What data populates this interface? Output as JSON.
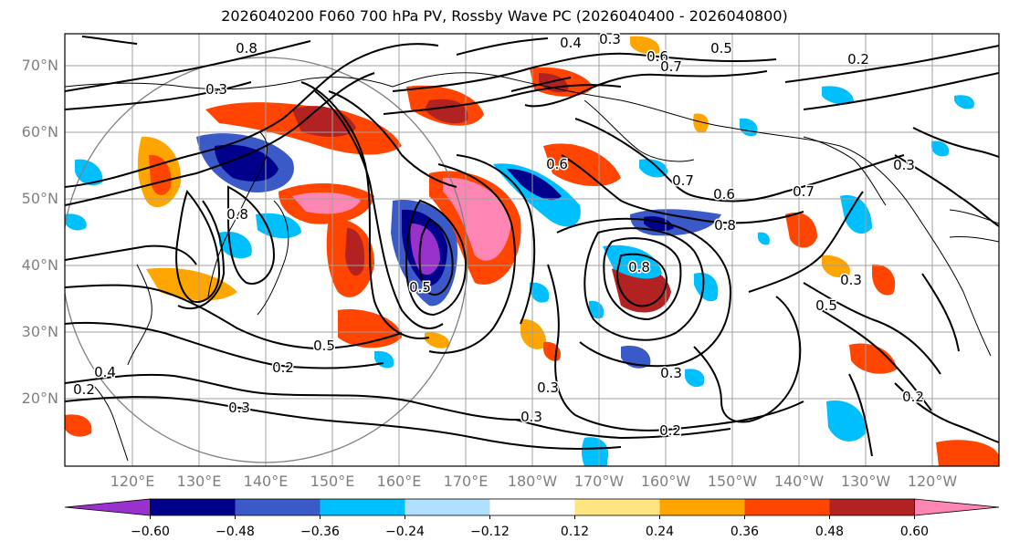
{
  "title": "2026040200 F060 700 hPa PV, Rossby Wave PC (2026040400 - 2026040800)",
  "lat_labels": [
    "70°N",
    "60°N",
    "50°N",
    "40°N",
    "30°N",
    "20°N"
  ],
  "lon_labels": [
    "120°E",
    "130°E",
    "140°E",
    "150°E",
    "160°E",
    "170°E",
    "180°W",
    "170°W",
    "160°W",
    "150°W",
    "140°W",
    "130°W",
    "120°W"
  ],
  "colorbar": {
    "ticks": [
      "−0.60",
      "−0.48",
      "−0.36",
      "−0.24",
      "−0.12",
      "0.12",
      "0.24",
      "0.36",
      "0.48",
      "0.60"
    ],
    "colors": [
      "#9932cc",
      "#00008b",
      "#3a5ac8",
      "#00bfff",
      "#b0e0ff",
      "#ffffff",
      "#ffe680",
      "#ffa500",
      "#ff4500",
      "#b22222",
      "#ff85b3"
    ]
  },
  "contour_labels": [
    "0.4",
    "0.3",
    "0.5",
    "0.6",
    "0.7",
    "0.2",
    "0.3",
    "0.8",
    "0.3",
    "0.5",
    "0.2",
    "0.3",
    "0.2",
    "0.3",
    "0.2",
    "0.7",
    "0.6",
    "0.8",
    "0.8",
    "0.5",
    "0.3",
    "0.3",
    "0.8",
    "0.7",
    "0.6",
    "0.5",
    "0.3",
    "0.4",
    "0.2"
  ]
}
